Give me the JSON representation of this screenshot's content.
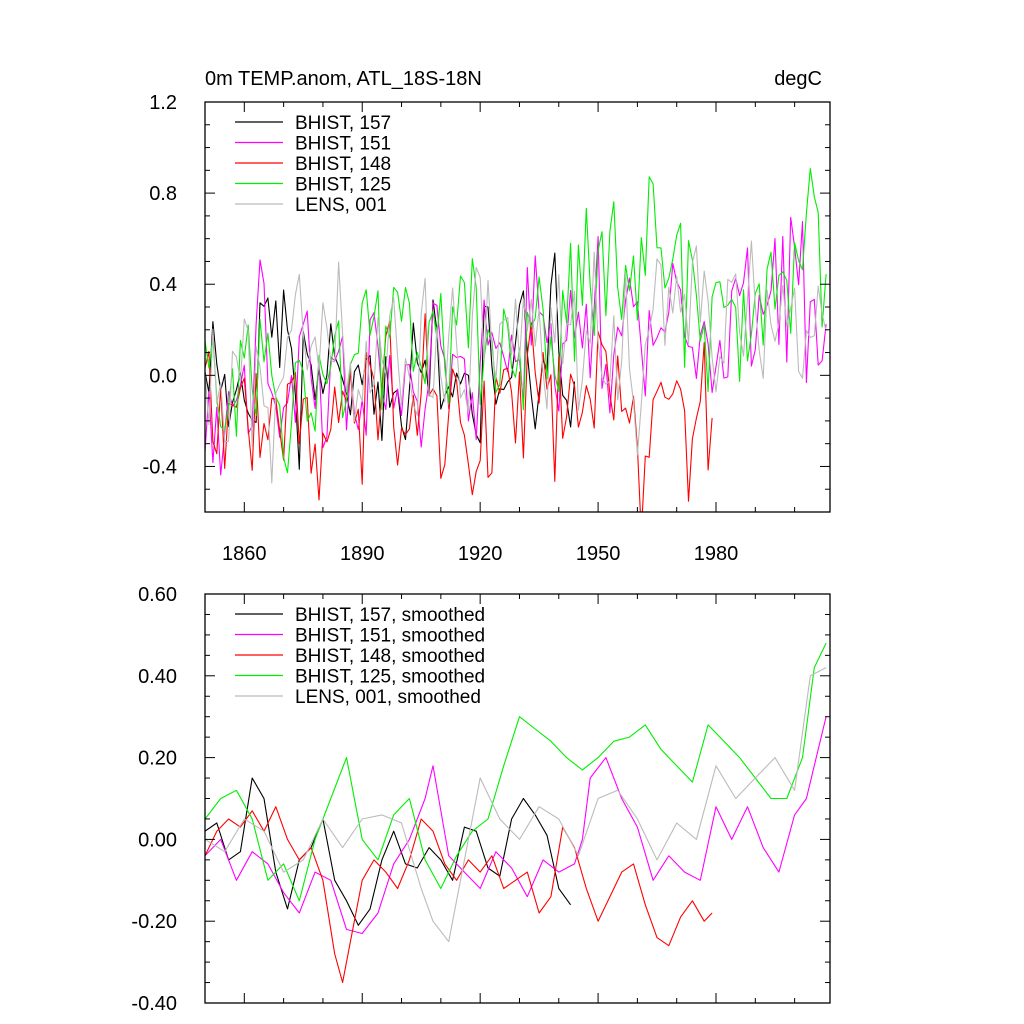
{
  "chart_data": [
    {
      "type": "line",
      "title": "0m TEMP.anom, ATL_18S-18N",
      "units": "degC",
      "xlim": [
        1850,
        2009
      ],
      "ylim": [
        -0.6,
        1.2
      ],
      "xticks": [
        1860,
        1890,
        1920,
        1950,
        1980
      ],
      "xtick_labels": [
        "1860",
        "1890",
        "1920",
        "1950",
        "1980"
      ],
      "yticks": [
        -0.4,
        0.0,
        0.4,
        0.8,
        1.2
      ],
      "ytick_labels": [
        "-0.4",
        "0.0",
        "0.4",
        "0.8",
        "1.2"
      ],
      "legend_position": "top-left",
      "series": [
        {
          "name": "BHIST, 157",
          "color": "#000000",
          "start": 1850,
          "end": 1944,
          "base": 0.0,
          "slope": 0.0,
          "amp": 0.17,
          "seed": 157
        },
        {
          "name": "BHIST, 151",
          "color": "#ff00ff",
          "start": 1850,
          "end": 2008,
          "base": -0.08,
          "slope": 0.0022,
          "amp": 0.19,
          "seed": 151
        },
        {
          "name": "BHIST, 148",
          "color": "#ff0000",
          "start": 1850,
          "end": 1979,
          "base": -0.05,
          "slope": -0.0012,
          "amp": 0.19,
          "seed": 148
        },
        {
          "name": "BHIST, 125",
          "color": "#00ee00",
          "start": 1850,
          "end": 2008,
          "base": 0.0,
          "slope": 0.0028,
          "amp": 0.2,
          "seed": 125
        },
        {
          "name": "LENS, 001",
          "color": "#bbbbbb",
          "start": 1850,
          "end": 2008,
          "base": 0.0,
          "slope": 0.0015,
          "amp": 0.18,
          "seed": 1
        }
      ]
    },
    {
      "type": "line",
      "title": "",
      "xlim": [
        1850,
        2009
      ],
      "ylim": [
        -0.4,
        0.6
      ],
      "xticks": [
        1860,
        1890,
        1920,
        1950,
        1980
      ],
      "yticks": [
        -0.4,
        -0.2,
        0.0,
        0.2,
        0.4,
        0.6
      ],
      "ytick_labels": [
        "-0.40",
        "-0.20",
        "0.00",
        "0.20",
        "0.40",
        "0.60"
      ],
      "legend_position": "top-left",
      "series": [
        {
          "name": "BHIST, 157, smoothed",
          "color": "#000000",
          "x": [
            1850,
            1853,
            1856,
            1859,
            1862,
            1865,
            1868,
            1871,
            1874,
            1877,
            1880,
            1883,
            1886,
            1889,
            1892,
            1895,
            1898,
            1901,
            1904,
            1907,
            1910,
            1913,
            1916,
            1919,
            1922,
            1925,
            1928,
            1931,
            1934,
            1937,
            1940,
            1943
          ],
          "y": [
            0.02,
            0.04,
            -0.05,
            -0.03,
            0.15,
            0.1,
            -0.08,
            -0.17,
            -0.05,
            -0.02,
            0.05,
            -0.1,
            -0.15,
            -0.21,
            -0.17,
            -0.05,
            0.02,
            -0.06,
            -0.07,
            -0.02,
            -0.05,
            -0.1,
            0.03,
            0.02,
            -0.07,
            -0.09,
            0.05,
            0.1,
            0.06,
            0.01,
            -0.12,
            -0.16
          ]
        },
        {
          "name": "BHIST, 151, smoothed",
          "color": "#ff00ff",
          "x": [
            1850,
            1854,
            1858,
            1862,
            1866,
            1870,
            1874,
            1878,
            1882,
            1886,
            1890,
            1894,
            1898,
            1902,
            1906,
            1908,
            1912,
            1916,
            1920,
            1924,
            1928,
            1932,
            1936,
            1940,
            1944,
            1946,
            1948,
            1952,
            1956,
            1960,
            1964,
            1968,
            1972,
            1976,
            1980,
            1984,
            1988,
            1992,
            1996,
            2000,
            2003,
            2006,
            2008
          ],
          "y": [
            -0.04,
            0.0,
            -0.1,
            -0.03,
            -0.06,
            -0.13,
            -0.18,
            -0.08,
            -0.1,
            -0.22,
            -0.23,
            -0.18,
            -0.06,
            0.0,
            0.1,
            0.18,
            -0.04,
            -0.08,
            -0.12,
            -0.03,
            -0.07,
            -0.14,
            -0.05,
            -0.08,
            -0.06,
            0.0,
            0.15,
            0.2,
            0.1,
            0.03,
            -0.1,
            -0.04,
            -0.08,
            -0.1,
            0.08,
            0.0,
            0.08,
            -0.02,
            -0.08,
            0.06,
            0.1,
            0.22,
            0.3
          ]
        },
        {
          "name": "BHIST, 148, smoothed",
          "color": "#ff0000",
          "x": [
            1850,
            1853,
            1856,
            1859,
            1862,
            1865,
            1868,
            1871,
            1874,
            1877,
            1880,
            1883,
            1885,
            1887,
            1890,
            1893,
            1896,
            1899,
            1902,
            1905,
            1908,
            1911,
            1914,
            1917,
            1920,
            1923,
            1926,
            1929,
            1932,
            1935,
            1938,
            1941,
            1944,
            1947,
            1950,
            1953,
            1956,
            1959,
            1962,
            1965,
            1968,
            1971,
            1974,
            1977,
            1979
          ],
          "y": [
            -0.04,
            0.02,
            0.05,
            0.03,
            0.07,
            0.02,
            0.08,
            0.0,
            -0.05,
            -0.02,
            -0.1,
            -0.28,
            -0.35,
            -0.25,
            -0.1,
            -0.05,
            -0.08,
            -0.12,
            -0.05,
            0.05,
            0.02,
            -0.06,
            -0.1,
            -0.05,
            -0.08,
            -0.04,
            -0.12,
            -0.1,
            -0.08,
            -0.18,
            -0.14,
            0.03,
            -0.02,
            -0.12,
            -0.2,
            -0.14,
            -0.08,
            -0.06,
            -0.16,
            -0.24,
            -0.26,
            -0.19,
            -0.15,
            -0.2,
            -0.18
          ]
        },
        {
          "name": "BHIST, 125, smoothed",
          "color": "#00ee00",
          "x": [
            1850,
            1854,
            1858,
            1862,
            1866,
            1870,
            1874,
            1878,
            1882,
            1886,
            1890,
            1894,
            1898,
            1902,
            1906,
            1910,
            1914,
            1918,
            1922,
            1926,
            1930,
            1934,
            1938,
            1942,
            1946,
            1950,
            1954,
            1958,
            1962,
            1966,
            1970,
            1974,
            1978,
            1982,
            1986,
            1990,
            1994,
            1998,
            2002,
            2005,
            2008
          ],
          "y": [
            0.05,
            0.1,
            0.12,
            0.05,
            -0.1,
            -0.06,
            -0.15,
            0.0,
            0.1,
            0.2,
            0.0,
            -0.05,
            0.06,
            0.1,
            -0.05,
            -0.12,
            -0.04,
            0.02,
            0.05,
            0.18,
            0.3,
            0.27,
            0.24,
            0.2,
            0.17,
            0.2,
            0.24,
            0.25,
            0.28,
            0.22,
            0.18,
            0.14,
            0.28,
            0.24,
            0.2,
            0.15,
            0.1,
            0.1,
            0.2,
            0.42,
            0.48
          ]
        },
        {
          "name": "LENS, 001, smoothed",
          "color": "#bbbbbb",
          "x": [
            1850,
            1855,
            1860,
            1865,
            1870,
            1875,
            1880,
            1885,
            1890,
            1895,
            1900,
            1905,
            1908,
            1912,
            1915,
            1920,
            1925,
            1930,
            1935,
            1940,
            1945,
            1950,
            1955,
            1960,
            1965,
            1970,
            1975,
            1980,
            1985,
            1990,
            1995,
            2000,
            2004,
            2008
          ],
          "y": [
            0.0,
            -0.03,
            0.05,
            0.02,
            -0.08,
            -0.05,
            0.05,
            -0.02,
            0.05,
            0.06,
            0.04,
            -0.12,
            -0.2,
            -0.25,
            -0.1,
            0.15,
            0.05,
            0.0,
            0.08,
            0.05,
            -0.04,
            0.1,
            0.12,
            0.05,
            -0.05,
            0.04,
            0.0,
            0.18,
            0.1,
            0.15,
            0.2,
            0.12,
            0.4,
            0.42
          ]
        }
      ]
    }
  ]
}
